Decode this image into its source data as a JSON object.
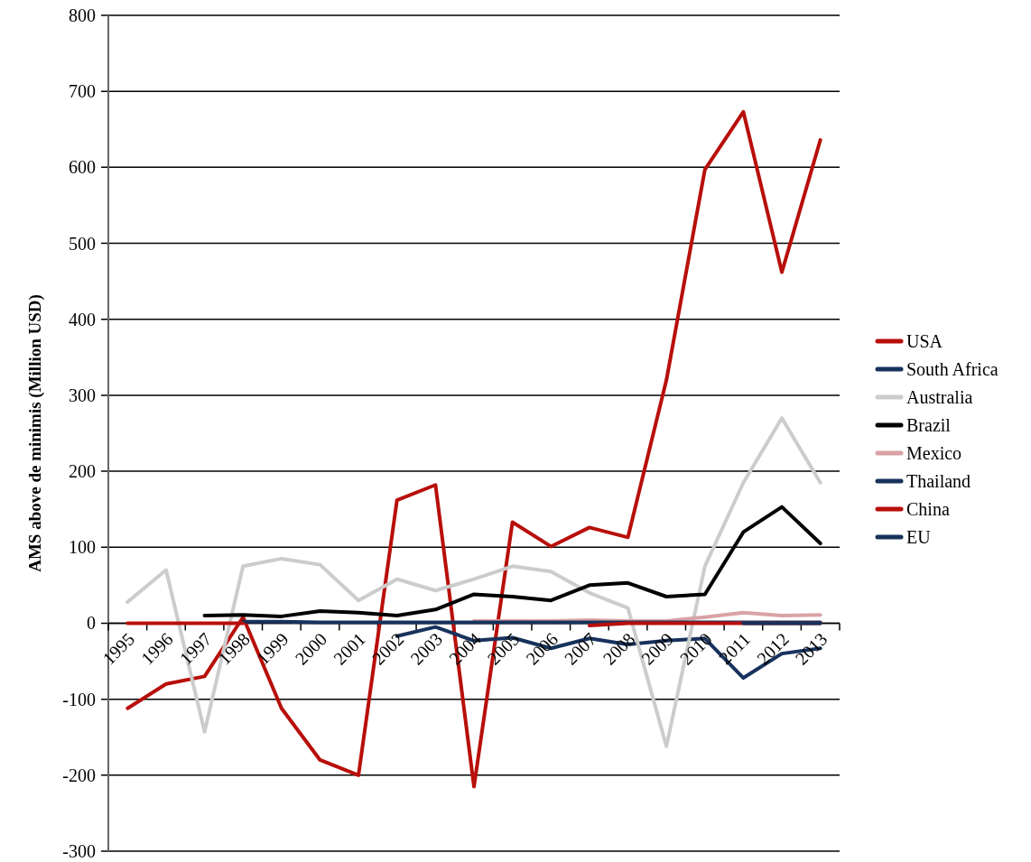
{
  "chart_data": {
    "type": "line",
    "ylabel": "AMS above de minimis (Million USD)",
    "categories": [
      "1995",
      "1996",
      "1997",
      "1998",
      "1999",
      "2000",
      "2001",
      "2002",
      "2003",
      "2004",
      "2005",
      "2006",
      "2007",
      "2008",
      "2009",
      "2010",
      "2011",
      "2012",
      "2013"
    ],
    "series": [
      {
        "name": "USA",
        "color": "#b80f0a",
        "values": [
          -112,
          -80,
          -70,
          8,
          -112,
          -180,
          -200,
          162,
          182,
          -215,
          133,
          101,
          126,
          113,
          320,
          597,
          673,
          462,
          636
        ]
      },
      {
        "name": "South Africa",
        "color": "#17325c",
        "values": [
          null,
          null,
          null,
          null,
          null,
          null,
          null,
          -17,
          -5,
          -23,
          -19,
          -33,
          -20,
          -28,
          -23,
          -20,
          -72,
          -40,
          -33
        ]
      },
      {
        "name": "Australia",
        "color": "#cccccc",
        "values": [
          28,
          70,
          -143,
          75,
          85,
          77,
          30,
          58,
          43,
          58,
          75,
          68,
          40,
          20,
          -162,
          75,
          185,
          270,
          185
        ]
      },
      {
        "name": "Brazil",
        "color": "#000000",
        "values": [
          null,
          null,
          10,
          11,
          9,
          16,
          14,
          10,
          18,
          38,
          35,
          30,
          50,
          53,
          35,
          38,
          120,
          153,
          105
        ]
      },
      {
        "name": "Mexico",
        "color": "#d9a3a5",
        "values": [
          null,
          null,
          null,
          null,
          null,
          null,
          null,
          null,
          null,
          3,
          3,
          3,
          4,
          3,
          3,
          8,
          14,
          10,
          11
        ]
      },
      {
        "name": "Thailand",
        "color": "#17325c",
        "values": [
          null,
          null,
          null,
          2,
          2,
          1,
          1,
          1,
          1,
          1,
          1,
          1,
          1,
          1,
          1,
          1,
          1,
          1,
          1
        ]
      },
      {
        "name": "China",
        "color": "#b80f0a",
        "values": [
          0,
          0,
          0,
          0,
          null,
          null,
          null,
          null,
          null,
          null,
          null,
          null,
          -3,
          0,
          0,
          0,
          0,
          0,
          0
        ]
      },
      {
        "name": "EU",
        "color": "#17325c",
        "values": [
          null,
          null,
          null,
          null,
          null,
          null,
          null,
          null,
          null,
          null,
          null,
          null,
          null,
          null,
          null,
          null,
          0,
          0,
          0
        ]
      }
    ],
    "ylim": [
      -300,
      800
    ],
    "yticks": [
      -300,
      -200,
      -100,
      0,
      100,
      200,
      300,
      400,
      500,
      600,
      700,
      800
    ],
    "grid": "y",
    "legend": "right",
    "line_style": "solid",
    "marker": "none"
  }
}
